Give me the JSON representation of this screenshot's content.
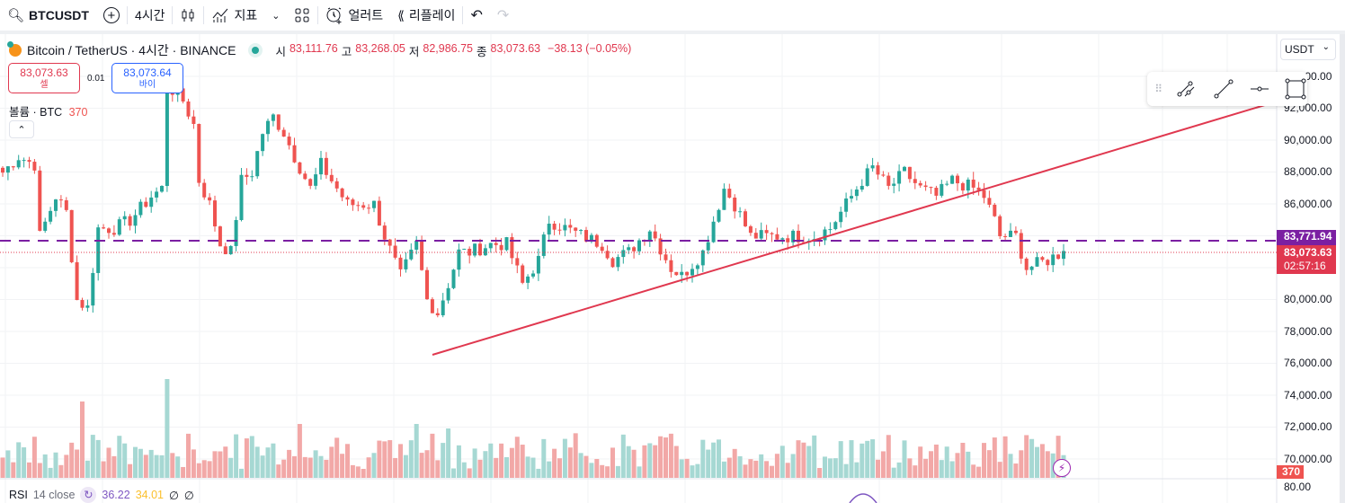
{
  "toolbar": {
    "symbol": "BTCUSDT",
    "interval": "4시간",
    "indicators": "지표",
    "alert": "얼러트",
    "replay": "리플레이"
  },
  "legend": {
    "title": "Bitcoin / TetherUS · 4시간 · BINANCE",
    "o_label": "시",
    "o": "83,111.76",
    "h_label": "고",
    "h": "83,268.05",
    "l_label": "저",
    "l": "82,986.75",
    "c_label": "종",
    "c": "83,073.63",
    "change": "−38.13 (−0.05%)"
  },
  "trade": {
    "sell_price": "83,073.63",
    "sell_label": "셀",
    "spread": "0.01",
    "buy_price": "83,073.64",
    "buy_label": "바이"
  },
  "volume": {
    "label": "볼륨 · BTC",
    "value": "370"
  },
  "currency": "USDT",
  "axis": {
    "labels": [
      "94,000.00",
      "92,000.00",
      "90,000.00",
      "88,000.00",
      "86,000.00",
      "80,000.00",
      "78,000.00",
      "76,000.00",
      "74,000.00",
      "72,000.00",
      "70,000.00"
    ],
    "rsi_label": "80.00"
  },
  "tags": {
    "line_price": "83,771.94",
    "last_price": "83,073.63",
    "countdown": "02:57:16",
    "volume": "370"
  },
  "rsi": {
    "label": "RSI",
    "params": "14 close",
    "v1": "36.22",
    "v2": "34.01",
    "v3": "∅",
    "v4": "∅"
  },
  "colors": {
    "up": "#26a69a",
    "down": "#ef5350",
    "line": "#e0384f",
    "hline": "#7b1fa2"
  },
  "chart_data": {
    "type": "candlestick",
    "anchors": [
      [
        0,
        88000
      ],
      [
        3,
        89000
      ],
      [
        6,
        88500
      ],
      [
        7,
        84000
      ],
      [
        10,
        86500
      ],
      [
        12,
        85500
      ],
      [
        14,
        80000
      ],
      [
        16,
        79500
      ],
      [
        18,
        84500
      ],
      [
        21,
        84500
      ],
      [
        24,
        85000
      ],
      [
        28,
        86500
      ],
      [
        30,
        87000
      ],
      [
        31,
        93500
      ],
      [
        34,
        92500
      ],
      [
        36,
        91000
      ],
      [
        37,
        87500
      ],
      [
        39,
        86000
      ],
      [
        41,
        83500
      ],
      [
        43,
        83000
      ],
      [
        45,
        87500
      ],
      [
        47,
        88000
      ],
      [
        49,
        90500
      ],
      [
        51,
        91500
      ],
      [
        53,
        90500
      ],
      [
        55,
        89000
      ],
      [
        58,
        87000
      ],
      [
        60,
        88500
      ],
      [
        63,
        87000
      ],
      [
        65,
        86000
      ],
      [
        70,
        86000
      ],
      [
        72,
        84000
      ],
      [
        75,
        81500
      ],
      [
        78,
        83500
      ],
      [
        80,
        80000
      ],
      [
        82,
        79200
      ],
      [
        84,
        81000
      ],
      [
        86,
        83000
      ],
      [
        88,
        83000
      ],
      [
        92,
        83500
      ],
      [
        95,
        83500
      ],
      [
        98,
        81000
      ],
      [
        101,
        82500
      ],
      [
        103,
        85000
      ],
      [
        108,
        84200
      ],
      [
        113,
        83500
      ],
      [
        115,
        82500
      ],
      [
        118,
        83000
      ],
      [
        122,
        84500
      ],
      [
        126,
        82000
      ],
      [
        128,
        81500
      ],
      [
        132,
        83000
      ],
      [
        134,
        85000
      ],
      [
        136,
        87000
      ],
      [
        138,
        86000
      ],
      [
        141,
        84000
      ],
      [
        146,
        84000
      ],
      [
        153,
        84000
      ],
      [
        156,
        84500
      ],
      [
        159,
        86000
      ],
      [
        162,
        87500
      ],
      [
        164,
        88300
      ],
      [
        167,
        87000
      ],
      [
        170,
        88000
      ],
      [
        173,
        87000
      ],
      [
        176,
        86500
      ],
      [
        179,
        87500
      ],
      [
        183,
        87000
      ],
      [
        185,
        86500
      ],
      [
        187,
        85000
      ],
      [
        188,
        84000
      ],
      [
        191,
        84000
      ],
      [
        193,
        82000
      ],
      [
        197,
        82500
      ],
      [
        200,
        83073
      ]
    ]
  }
}
